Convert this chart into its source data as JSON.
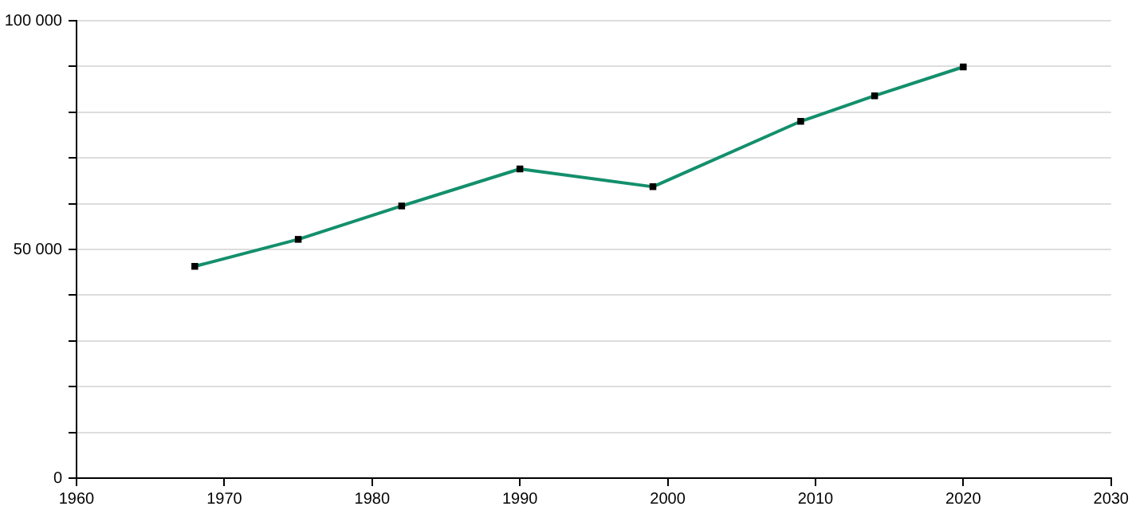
{
  "chart_data": {
    "type": "line",
    "x": [
      1968,
      1975,
      1982,
      1990,
      1999,
      2009,
      2014,
      2020
    ],
    "series": [
      {
        "color": "#138f6c",
        "values": [
          46300,
          52200,
          59500,
          67600,
          63700,
          78000,
          83600,
          89900
        ]
      }
    ],
    "xlim": [
      1960,
      2030
    ],
    "xticks": [
      1960,
      1970,
      1980,
      1990,
      2000,
      2010,
      2020,
      2030
    ],
    "ylim": [
      0,
      100000
    ],
    "yticks": [
      {
        "value": 0,
        "label": "0"
      },
      {
        "value": 10000,
        "label": null
      },
      {
        "value": 20000,
        "label": null
      },
      {
        "value": 30000,
        "label": null
      },
      {
        "value": 40000,
        "label": null
      },
      {
        "value": 50000,
        "label": "50 000"
      },
      {
        "value": 60000,
        "label": null
      },
      {
        "value": 70000,
        "label": null
      },
      {
        "value": 80000,
        "label": null
      },
      {
        "value": 90000,
        "label": null
      },
      {
        "value": 100000,
        "label": "100 000"
      }
    ],
    "grid": "y",
    "marker": "square",
    "line_style": "solid",
    "legend": false
  }
}
